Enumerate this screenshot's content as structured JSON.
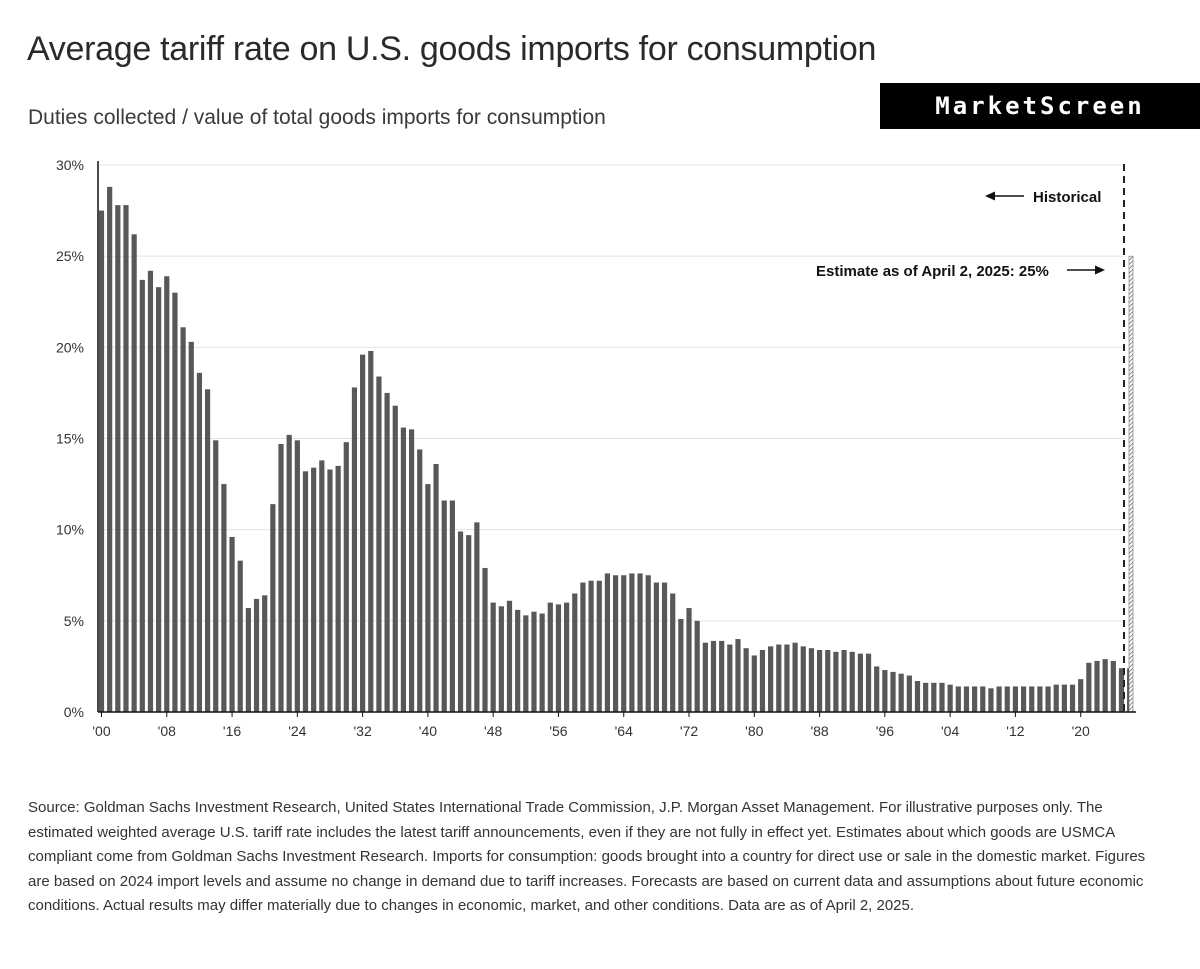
{
  "title": "Average tariff rate on U.S. goods imports for consumption",
  "subtitle": "Duties collected / value of total goods imports for consumption",
  "brand": "MarketScreen",
  "source": "Source: Goldman Sachs Investment Research, United States International Trade Commission, J.P. Morgan Asset Management. For illustrative purposes only. The estimated weighted average U.S. tariff rate includes the latest tariff announcements, even if they are not fully in effect yet. Estimates about which goods are USMCA compliant come from Goldman Sachs Investment Research. Imports for consumption: goods brought into a country for direct use or sale in the domestic market. Figures are based on 2024 import levels and assume no change in demand due to tariff increases. Forecasts are based on current data and assumptions about future economic conditions. Actual results may differ materially due to changes in economic, market, and other conditions. Data are as of April 2, 2025.",
  "colors": {
    "bar": "#585858",
    "estimate_hatch": "#6e6e6e",
    "grid": "#e3e3e3",
    "axis": "#111111"
  },
  "chart_data": {
    "type": "bar",
    "title": "Average tariff rate on U.S. goods imports for consumption",
    "subtitle": "Duties collected / value of total goods imports for consumption",
    "ylim": [
      0,
      30
    ],
    "yticks": [
      0,
      5,
      10,
      15,
      20,
      25,
      30
    ],
    "ytick_labels": [
      "0%",
      "5%",
      "10%",
      "15%",
      "20%",
      "25%",
      "30%"
    ],
    "xticks": [
      1900,
      1908,
      1916,
      1924,
      1932,
      1940,
      1948,
      1956,
      1964,
      1972,
      1980,
      1988,
      1996,
      2004,
      2012,
      2020
    ],
    "xtick_labels": [
      "'00",
      "'08",
      "'16",
      "'24",
      "'32",
      "'40",
      "'48",
      "'56",
      "'64",
      "'72",
      "'80",
      "'88",
      "'96",
      "'04",
      "'12",
      "'20"
    ],
    "grid": true,
    "x_start": 1900,
    "values": [
      27.5,
      28.8,
      27.8,
      27.8,
      26.2,
      23.7,
      24.2,
      23.3,
      23.9,
      23.0,
      21.1,
      20.3,
      18.6,
      17.7,
      14.9,
      12.5,
      9.6,
      8.3,
      5.7,
      6.2,
      6.4,
      11.4,
      14.7,
      15.2,
      14.9,
      13.2,
      13.4,
      13.8,
      13.3,
      13.5,
      14.8,
      17.8,
      19.6,
      19.8,
      18.4,
      17.5,
      16.8,
      15.6,
      15.5,
      14.4,
      12.5,
      13.6,
      11.6,
      11.6,
      9.9,
      9.7,
      10.4,
      7.9,
      6.0,
      5.8,
      6.1,
      5.6,
      5.3,
      5.5,
      5.4,
      6.0,
      5.9,
      6.0,
      6.5,
      7.1,
      7.2,
      7.2,
      7.6,
      7.5,
      7.5,
      7.6,
      7.6,
      7.5,
      7.1,
      7.1,
      6.5,
      5.1,
      5.7,
      5.0,
      3.8,
      3.9,
      3.9,
      3.7,
      4.0,
      3.5,
      3.1,
      3.4,
      3.6,
      3.7,
      3.7,
      3.8,
      3.6,
      3.5,
      3.4,
      3.4,
      3.3,
      3.4,
      3.3,
      3.2,
      3.2,
      2.5,
      2.3,
      2.2,
      2.1,
      2.0,
      1.7,
      1.6,
      1.6,
      1.6,
      1.5,
      1.4,
      1.4,
      1.4,
      1.4,
      1.3,
      1.4,
      1.4,
      1.4,
      1.4,
      1.4,
      1.4,
      1.4,
      1.5,
      1.5,
      1.5,
      1.8,
      2.7,
      2.8,
      2.9,
      2.8,
      2.4,
      2.4
    ],
    "estimate": {
      "value": 25,
      "label": "Estimate as of April 2, 2025: 25%"
    },
    "annotations": [
      "Historical",
      "Estimate as of April 2, 2025: 25%"
    ]
  }
}
